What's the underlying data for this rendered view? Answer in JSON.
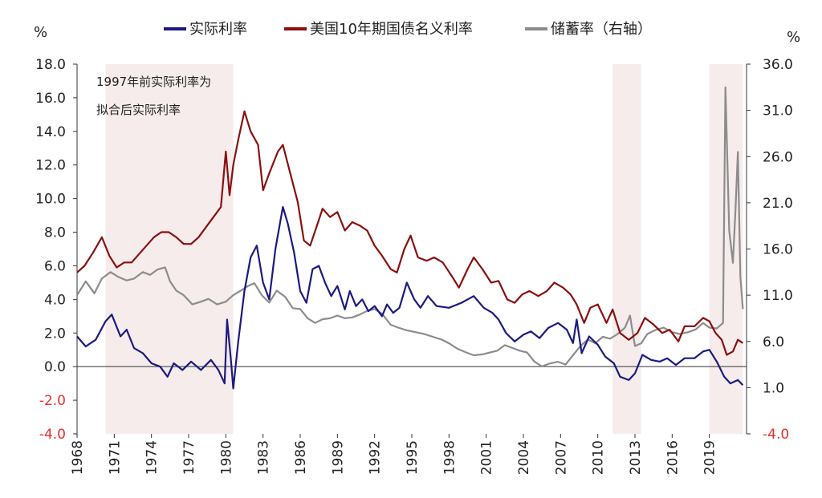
{
  "chart_data": {
    "type": "line",
    "legend": {
      "position": "top-center",
      "entries": [
        {
          "name": "实际利率",
          "color": "#1a1a80"
        },
        {
          "name": "美国10年期国债名义利率",
          "color": "#8b0f0f"
        },
        {
          "name": "储蓄率（右轴）",
          "color": "#8c8c8c"
        }
      ]
    },
    "left_axis": {
      "unit": "%",
      "ylim": [
        -4,
        18
      ],
      "ticks": [
        "18.0",
        "16.0",
        "14.0",
        "12.0",
        "10.0",
        "8.0",
        "6.0",
        "4.0",
        "2.0",
        "0.0",
        "-2.0",
        "-4.0"
      ],
      "tick_values": [
        18,
        16,
        14,
        12,
        10,
        8,
        6,
        4,
        2,
        0,
        -2,
        -4
      ]
    },
    "right_axis": {
      "unit": "%",
      "ylim": [
        -4,
        36
      ],
      "ticks": [
        "36.0",
        "31.0",
        "26.0",
        "21.0",
        "16.0",
        "11.0",
        "6.0",
        "1.0",
        "-4.0"
      ],
      "tick_values": [
        36,
        31,
        26,
        21,
        16,
        11,
        6,
        1,
        -4
      ]
    },
    "x_axis": {
      "xlim": [
        1968,
        2022
      ],
      "ticks": [
        "1968",
        "1971",
        "1974",
        "1977",
        "1980",
        "1983",
        "1986",
        "1989",
        "1992",
        "1995",
        "1998",
        "2001",
        "2004",
        "2007",
        "2010",
        "2013",
        "2016",
        "2019"
      ],
      "tick_values": [
        1968,
        1971,
        1974,
        1977,
        1980,
        1983,
        1986,
        1989,
        1992,
        1995,
        1998,
        2001,
        2004,
        2007,
        2010,
        2013,
        2016,
        2019
      ]
    },
    "shaded_periods": [
      {
        "from": 1970.3,
        "to": 1980.6
      },
      {
        "from": 2011.2,
        "to": 2013.5
      },
      {
        "from": 2019.0,
        "to": 2021.7
      }
    ],
    "annotation": {
      "lines": [
        "1997年前实际利率为",
        "拟合后实际利率"
      ]
    },
    "series": [
      {
        "name": "实际利率",
        "axis": "left",
        "color": "#1a1a80",
        "points": [
          [
            1968,
            1.8
          ],
          [
            1968.7,
            1.2
          ],
          [
            1969.5,
            1.6
          ],
          [
            1970.3,
            2.7
          ],
          [
            1970.8,
            3.1
          ],
          [
            1971.5,
            1.8
          ],
          [
            1972,
            2.2
          ],
          [
            1972.6,
            1.1
          ],
          [
            1973.3,
            0.8
          ],
          [
            1974,
            0.2
          ],
          [
            1974.7,
            0.0
          ],
          [
            1975.3,
            -0.6
          ],
          [
            1975.8,
            0.2
          ],
          [
            1976.5,
            -0.2
          ],
          [
            1977.2,
            0.3
          ],
          [
            1978,
            -0.2
          ],
          [
            1978.8,
            0.4
          ],
          [
            1979.4,
            -0.2
          ],
          [
            1979.9,
            -1.0
          ],
          [
            1980.1,
            2.8
          ],
          [
            1980.4,
            0.5
          ],
          [
            1980.6,
            -1.3
          ],
          [
            1981,
            1.5
          ],
          [
            1981.5,
            4.5
          ],
          [
            1982,
            6.5
          ],
          [
            1982.5,
            7.2
          ],
          [
            1983,
            5.0
          ],
          [
            1983.5,
            4.0
          ],
          [
            1984,
            7.0
          ],
          [
            1984.6,
            9.5
          ],
          [
            1985,
            8.5
          ],
          [
            1985.5,
            6.8
          ],
          [
            1986,
            4.5
          ],
          [
            1986.5,
            3.8
          ],
          [
            1987,
            5.8
          ],
          [
            1987.5,
            6.0
          ],
          [
            1988,
            5.0
          ],
          [
            1988.5,
            4.2
          ],
          [
            1989,
            4.8
          ],
          [
            1989.6,
            3.4
          ],
          [
            1990,
            4.5
          ],
          [
            1990.5,
            3.6
          ],
          [
            1991,
            4.0
          ],
          [
            1991.5,
            3.3
          ],
          [
            1992,
            3.6
          ],
          [
            1992.6,
            3.0
          ],
          [
            1993,
            3.7
          ],
          [
            1993.5,
            3.2
          ],
          [
            1994,
            3.5
          ],
          [
            1994.6,
            5.0
          ],
          [
            1995.2,
            4.0
          ],
          [
            1995.7,
            3.5
          ],
          [
            1996.3,
            4.2
          ],
          [
            1997,
            3.6
          ],
          [
            1998,
            3.5
          ],
          [
            1999,
            3.8
          ],
          [
            2000,
            4.2
          ],
          [
            2000.8,
            3.5
          ],
          [
            2001.5,
            3.2
          ],
          [
            2002,
            2.8
          ],
          [
            2002.6,
            2.0
          ],
          [
            2003.3,
            1.5
          ],
          [
            2004,
            1.9
          ],
          [
            2004.6,
            2.1
          ],
          [
            2005.3,
            1.7
          ],
          [
            2006,
            2.3
          ],
          [
            2006.8,
            2.6
          ],
          [
            2007.5,
            2.2
          ],
          [
            2008,
            1.4
          ],
          [
            2008.3,
            2.8
          ],
          [
            2008.7,
            0.8
          ],
          [
            2009.3,
            1.8
          ],
          [
            2010,
            1.3
          ],
          [
            2010.6,
            0.6
          ],
          [
            2011.3,
            0.2
          ],
          [
            2011.8,
            -0.6
          ],
          [
            2012.5,
            -0.8
          ],
          [
            2013,
            -0.4
          ],
          [
            2013.6,
            0.7
          ],
          [
            2014.3,
            0.4
          ],
          [
            2015,
            0.3
          ],
          [
            2015.6,
            0.5
          ],
          [
            2016.3,
            0.1
          ],
          [
            2017,
            0.5
          ],
          [
            2017.8,
            0.5
          ],
          [
            2018.5,
            0.9
          ],
          [
            2019,
            1.0
          ],
          [
            2019.6,
            0.3
          ],
          [
            2020.2,
            -0.6
          ],
          [
            2020.7,
            -1.0
          ],
          [
            2021.3,
            -0.8
          ],
          [
            2021.7,
            -1.1
          ]
        ]
      },
      {
        "name": "美国10年期国债名义利率",
        "axis": "left",
        "color": "#8b0f0f",
        "points": [
          [
            1968,
            5.6
          ],
          [
            1968.6,
            6.0
          ],
          [
            1969.3,
            6.8
          ],
          [
            1970,
            7.7
          ],
          [
            1970.6,
            6.6
          ],
          [
            1971.2,
            5.9
          ],
          [
            1971.8,
            6.2
          ],
          [
            1972.4,
            6.2
          ],
          [
            1973,
            6.7
          ],
          [
            1973.6,
            7.2
          ],
          [
            1974.2,
            7.7
          ],
          [
            1974.8,
            8.0
          ],
          [
            1975.4,
            8.0
          ],
          [
            1976,
            7.7
          ],
          [
            1976.6,
            7.3
          ],
          [
            1977.2,
            7.3
          ],
          [
            1977.8,
            7.7
          ],
          [
            1978.4,
            8.3
          ],
          [
            1979,
            8.9
          ],
          [
            1979.6,
            9.5
          ],
          [
            1980,
            12.8
          ],
          [
            1980.3,
            10.2
          ],
          [
            1980.6,
            12.0
          ],
          [
            1981,
            13.5
          ],
          [
            1981.5,
            15.2
          ],
          [
            1982,
            14.0
          ],
          [
            1982.6,
            13.2
          ],
          [
            1983,
            10.5
          ],
          [
            1983.5,
            11.5
          ],
          [
            1984.2,
            12.8
          ],
          [
            1984.6,
            13.2
          ],
          [
            1985.2,
            11.5
          ],
          [
            1985.8,
            9.8
          ],
          [
            1986.3,
            7.5
          ],
          [
            1986.8,
            7.2
          ],
          [
            1987.4,
            8.5
          ],
          [
            1987.8,
            9.4
          ],
          [
            1988.4,
            8.9
          ],
          [
            1989,
            9.2
          ],
          [
            1989.6,
            8.1
          ],
          [
            1990.2,
            8.6
          ],
          [
            1990.8,
            8.4
          ],
          [
            1991.4,
            8.1
          ],
          [
            1992,
            7.2
          ],
          [
            1992.6,
            6.6
          ],
          [
            1993.3,
            5.8
          ],
          [
            1993.8,
            5.6
          ],
          [
            1994.4,
            7.0
          ],
          [
            1994.9,
            7.8
          ],
          [
            1995.5,
            6.5
          ],
          [
            1996.2,
            6.3
          ],
          [
            1996.8,
            6.5
          ],
          [
            1997.5,
            6.2
          ],
          [
            1998.3,
            5.3
          ],
          [
            1998.8,
            4.7
          ],
          [
            1999.5,
            5.8
          ],
          [
            2000,
            6.5
          ],
          [
            2000.7,
            5.8
          ],
          [
            2001.4,
            5.0
          ],
          [
            2002,
            5.1
          ],
          [
            2002.7,
            4.0
          ],
          [
            2003.3,
            3.8
          ],
          [
            2003.9,
            4.3
          ],
          [
            2004.5,
            4.5
          ],
          [
            2005.2,
            4.2
          ],
          [
            2005.9,
            4.5
          ],
          [
            2006.5,
            5.0
          ],
          [
            2007.2,
            4.7
          ],
          [
            2007.8,
            4.3
          ],
          [
            2008.3,
            3.7
          ],
          [
            2008.9,
            2.6
          ],
          [
            2009.4,
            3.5
          ],
          [
            2010,
            3.7
          ],
          [
            2010.7,
            2.6
          ],
          [
            2011.2,
            3.4
          ],
          [
            2011.8,
            2.0
          ],
          [
            2012.5,
            1.6
          ],
          [
            2013.2,
            2.0
          ],
          [
            2013.8,
            2.9
          ],
          [
            2014.5,
            2.5
          ],
          [
            2015.2,
            2.0
          ],
          [
            2015.8,
            2.2
          ],
          [
            2016.5,
            1.5
          ],
          [
            2017,
            2.4
          ],
          [
            2017.8,
            2.4
          ],
          [
            2018.5,
            2.9
          ],
          [
            2019,
            2.7
          ],
          [
            2019.5,
            2.0
          ],
          [
            2020,
            1.6
          ],
          [
            2020.4,
            0.7
          ],
          [
            2020.9,
            0.9
          ],
          [
            2021.3,
            1.6
          ],
          [
            2021.7,
            1.4
          ]
        ]
      },
      {
        "name": "储蓄率（右轴）",
        "axis": "right",
        "color": "#8c8c8c",
        "points": [
          [
            1968,
            11.0
          ],
          [
            1968.7,
            12.5
          ],
          [
            1969.4,
            11.2
          ],
          [
            1970,
            12.8
          ],
          [
            1970.7,
            13.5
          ],
          [
            1971.3,
            13.0
          ],
          [
            1972,
            12.6
          ],
          [
            1972.6,
            12.8
          ],
          [
            1973.3,
            13.5
          ],
          [
            1973.9,
            13.2
          ],
          [
            1974.5,
            13.8
          ],
          [
            1975.1,
            14.0
          ],
          [
            1975.5,
            12.5
          ],
          [
            1976,
            11.5
          ],
          [
            1976.6,
            11.0
          ],
          [
            1977.3,
            10.0
          ],
          [
            1978,
            10.3
          ],
          [
            1978.6,
            10.6
          ],
          [
            1979.3,
            10.0
          ],
          [
            1980,
            10.3
          ],
          [
            1980.6,
            11.0
          ],
          [
            1981.2,
            11.5
          ],
          [
            1981.8,
            12.0
          ],
          [
            1982.3,
            12.3
          ],
          [
            1982.9,
            11.0
          ],
          [
            1983.5,
            10.2
          ],
          [
            1984.1,
            11.5
          ],
          [
            1984.8,
            10.8
          ],
          [
            1985.4,
            9.6
          ],
          [
            1986,
            9.5
          ],
          [
            1986.6,
            8.5
          ],
          [
            1987.2,
            8.0
          ],
          [
            1987.8,
            8.4
          ],
          [
            1988.4,
            8.5
          ],
          [
            1989,
            8.8
          ],
          [
            1989.6,
            8.5
          ],
          [
            1990.2,
            8.6
          ],
          [
            1990.8,
            8.9
          ],
          [
            1991.4,
            9.3
          ],
          [
            1992,
            9.5
          ],
          [
            1992.6,
            9.0
          ],
          [
            1993.3,
            7.8
          ],
          [
            1993.9,
            7.5
          ],
          [
            1994.6,
            7.2
          ],
          [
            1995.3,
            7.0
          ],
          [
            1996,
            6.8
          ],
          [
            1996.7,
            6.5
          ],
          [
            1997.4,
            6.2
          ],
          [
            1998,
            5.8
          ],
          [
            1998.7,
            5.2
          ],
          [
            1999.4,
            4.8
          ],
          [
            2000,
            4.5
          ],
          [
            2000.7,
            4.6
          ],
          [
            2001.3,
            4.8
          ],
          [
            2001.9,
            5.0
          ],
          [
            2002.5,
            5.6
          ],
          [
            2003.1,
            5.3
          ],
          [
            2003.7,
            5.0
          ],
          [
            2004.3,
            4.8
          ],
          [
            2004.9,
            3.8
          ],
          [
            2005.5,
            3.3
          ],
          [
            2006.1,
            3.6
          ],
          [
            2006.8,
            3.8
          ],
          [
            2007.4,
            3.5
          ],
          [
            2008,
            4.5
          ],
          [
            2008.6,
            5.5
          ],
          [
            2009.2,
            6.2
          ],
          [
            2009.8,
            5.8
          ],
          [
            2010.4,
            6.5
          ],
          [
            2011,
            6.3
          ],
          [
            2011.6,
            6.8
          ],
          [
            2012.2,
            7.5
          ],
          [
            2012.6,
            8.8
          ],
          [
            2013,
            5.5
          ],
          [
            2013.5,
            5.8
          ],
          [
            2014,
            6.8
          ],
          [
            2014.6,
            7.2
          ],
          [
            2015.3,
            7.5
          ],
          [
            2016,
            7.0
          ],
          [
            2016.6,
            6.8
          ],
          [
            2017.3,
            7.0
          ],
          [
            2017.9,
            7.3
          ],
          [
            2018.5,
            8.0
          ],
          [
            2019,
            7.5
          ],
          [
            2019.6,
            7.4
          ],
          [
            2020.1,
            8.0
          ],
          [
            2020.3,
            33.5
          ],
          [
            2020.6,
            18.0
          ],
          [
            2020.9,
            14.5
          ],
          [
            2021.1,
            20.0
          ],
          [
            2021.3,
            26.5
          ],
          [
            2021.5,
            13.0
          ],
          [
            2021.7,
            9.5
          ]
        ]
      }
    ]
  }
}
